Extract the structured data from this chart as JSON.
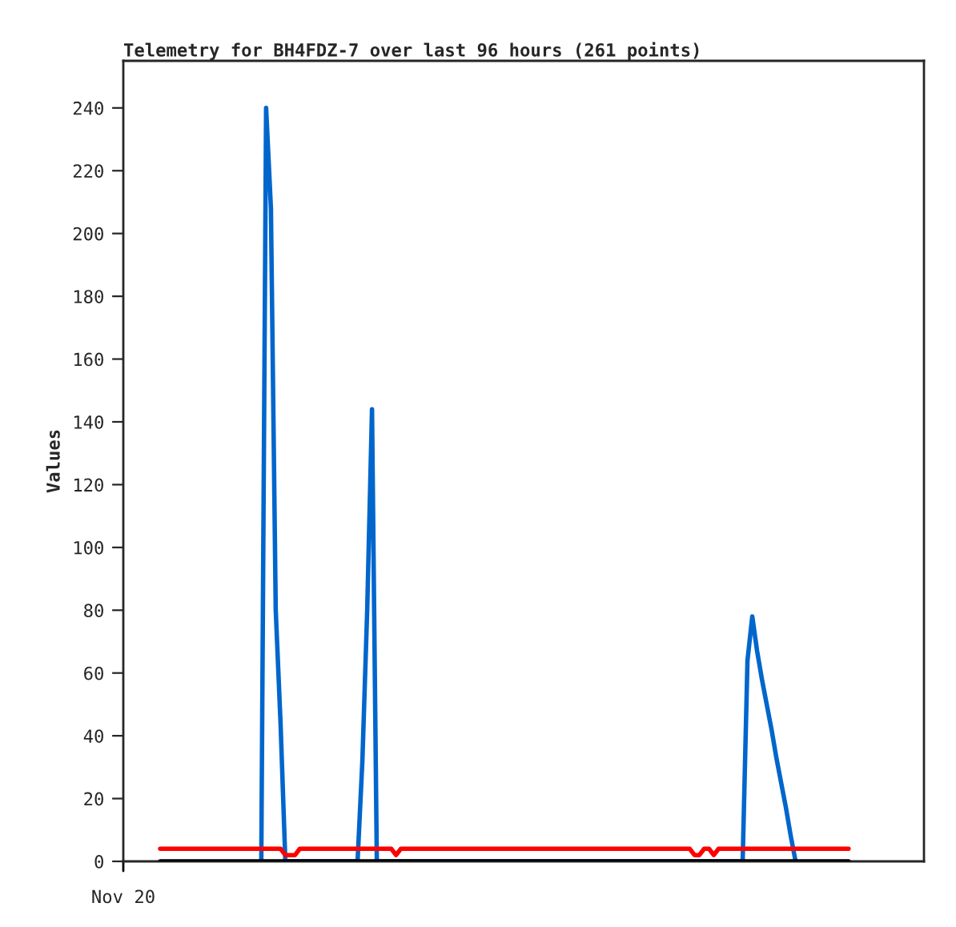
{
  "chart_data": {
    "type": "line",
    "title": "Telemetry for BH4FDZ-7 over last 96 hours (261 points)",
    "ylabel": "Values",
    "annotations": [
      "Nov 20"
    ],
    "categories": [
      null,
      null,
      null,
      null,
      null,
      null,
      null,
      null,
      null,
      null,
      null,
      null,
      null,
      null,
      null,
      null,
      null,
      null,
      null,
      null,
      null,
      null,
      null,
      null,
      null,
      null,
      null,
      null,
      null,
      null,
      null,
      null,
      null,
      null,
      null,
      null,
      null,
      null,
      null,
      null,
      null,
      null,
      null,
      null,
      null,
      null,
      null,
      null,
      null,
      null,
      null,
      null,
      null,
      null,
      null,
      null,
      null,
      null,
      null,
      null,
      null,
      null,
      null,
      null,
      null,
      null,
      null,
      null,
      null,
      null,
      null,
      null,
      null,
      null,
      null,
      null,
      null,
      null,
      null,
      null,
      null,
      null,
      null,
      null,
      null,
      null,
      null,
      null,
      null,
      null,
      null,
      null,
      null,
      null,
      null,
      null,
      null,
      null,
      null,
      null,
      null,
      null,
      null,
      null,
      null,
      null,
      null,
      null,
      null,
      null,
      null,
      null,
      null,
      null,
      null,
      null,
      null,
      null,
      null,
      null,
      null,
      null,
      null,
      null,
      null,
      null,
      null,
      null,
      null,
      null,
      null,
      null,
      null,
      null,
      null,
      null,
      null,
      null,
      null,
      null,
      null,
      null,
      null,
      null
    ],
    "ylim": [
      0,
      255
    ],
    "yticks": [
      0,
      20,
      40,
      60,
      80,
      100,
      120,
      140,
      160,
      180,
      200,
      220,
      240
    ],
    "grid": false,
    "legend": false,
    "marker": "none",
    "line_style": "solid",
    "series": [
      {
        "color": "#0066cc",
        "values": [
          null,
          null,
          null,
          null,
          null,
          null,
          null,
          null,
          null,
          null,
          null,
          null,
          null,
          null,
          null,
          null,
          null,
          null,
          null,
          null,
          null,
          0,
          240,
          208,
          80,
          44,
          0,
          null,
          null,
          null,
          null,
          null,
          null,
          null,
          null,
          null,
          null,
          null,
          null,
          null,
          null,
          0,
          32,
          80,
          144,
          0,
          null,
          null,
          null,
          null,
          null,
          null,
          null,
          null,
          null,
          null,
          null,
          null,
          null,
          null,
          null,
          null,
          null,
          null,
          null,
          null,
          null,
          null,
          null,
          null,
          null,
          null,
          null,
          null,
          null,
          null,
          null,
          null,
          null,
          null,
          null,
          null,
          null,
          null,
          null,
          null,
          null,
          null,
          null,
          null,
          null,
          null,
          null,
          null,
          null,
          null,
          null,
          null,
          null,
          null,
          null,
          null,
          null,
          null,
          null,
          null,
          null,
          null,
          null,
          null,
          null,
          null,
          null,
          null,
          null,
          null,
          null,
          null,
          null,
          null,
          null,
          0,
          64,
          78,
          67,
          58,
          50,
          42,
          33,
          25,
          17,
          8,
          0,
          null,
          null,
          null,
          null,
          null,
          null,
          null,
          null,
          null,
          null,
          null
        ]
      },
      {
        "color": "#000000",
        "values": [
          0,
          0,
          0,
          0,
          0,
          0,
          0,
          0,
          0,
          0,
          0,
          0,
          0,
          0,
          0,
          0,
          0,
          0,
          0,
          0,
          0,
          0,
          0,
          0,
          0,
          0,
          0,
          0,
          0,
          0,
          0,
          0,
          0,
          0,
          0,
          0,
          0,
          0,
          0,
          0,
          0,
          0,
          0,
          0,
          0,
          0,
          0,
          0,
          0,
          0,
          0,
          0,
          0,
          0,
          0,
          0,
          0,
          0,
          0,
          0,
          0,
          0,
          0,
          0,
          0,
          0,
          0,
          0,
          0,
          0,
          0,
          0,
          0,
          0,
          0,
          0,
          0,
          0,
          0,
          0,
          0,
          0,
          0,
          0,
          0,
          0,
          0,
          0,
          0,
          0,
          0,
          0,
          0,
          0,
          0,
          0,
          0,
          0,
          0,
          0,
          0,
          0,
          0,
          0,
          0,
          0,
          0,
          0,
          0,
          0,
          0,
          0,
          0,
          0,
          0,
          0,
          0,
          0,
          0,
          0,
          0,
          0,
          0,
          0,
          0,
          0,
          0,
          0,
          0,
          0,
          0,
          0,
          0,
          0,
          0,
          0,
          0,
          0,
          0,
          0,
          0,
          0,
          0,
          0
        ]
      },
      {
        "color": "#ff0000",
        "values": [
          4,
          4,
          4,
          4,
          4,
          4,
          4,
          4,
          4,
          4,
          4,
          4,
          4,
          4,
          4,
          4,
          4,
          4,
          4,
          4,
          4,
          4,
          4,
          4,
          4,
          4,
          2,
          2,
          2,
          4,
          4,
          4,
          4,
          4,
          4,
          4,
          4,
          4,
          4,
          4,
          4,
          4,
          4,
          4,
          4,
          4,
          4,
          4,
          4,
          2,
          4,
          4,
          4,
          4,
          4,
          4,
          4,
          4,
          4,
          4,
          4,
          4,
          4,
          4,
          4,
          4,
          4,
          4,
          4,
          4,
          4,
          4,
          4,
          4,
          4,
          4,
          4,
          4,
          4,
          4,
          4,
          4,
          4,
          4,
          4,
          4,
          4,
          4,
          4,
          4,
          4,
          4,
          4,
          4,
          4,
          4,
          4,
          4,
          4,
          4,
          4,
          4,
          4,
          4,
          4,
          4,
          4,
          4,
          4,
          4,
          4,
          2,
          2,
          4,
          4,
          2,
          4,
          4,
          4,
          4,
          4,
          4,
          4,
          4,
          4,
          4,
          4,
          4,
          4,
          4,
          4,
          4,
          4,
          4,
          4,
          4,
          4,
          4,
          4,
          4,
          4,
          4,
          4,
          4
        ]
      }
    ]
  }
}
